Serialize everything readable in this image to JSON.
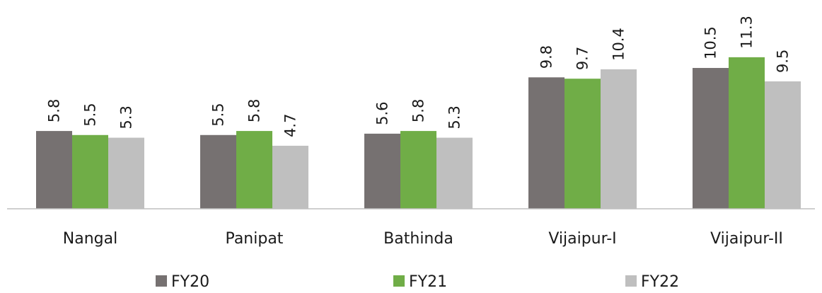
{
  "chart_data": {
    "type": "bar",
    "title": "",
    "xlabel": "",
    "ylabel": "",
    "categories": [
      "Nangal",
      "Panipat",
      "Bathinda",
      "Vijaipur-I",
      "Vijaipur-II"
    ],
    "series": [
      {
        "name": "FY20",
        "color": "#767171",
        "values": [
          5.8,
          5.5,
          5.6,
          9.8,
          10.5
        ],
        "labels": [
          "5.8",
          "5.5",
          "5.6",
          "9.8",
          "10.5"
        ]
      },
      {
        "name": "FY21",
        "color": "#70ad47",
        "values": [
          5.5,
          5.8,
          5.8,
          9.7,
          11.3
        ],
        "labels": [
          "5.5",
          "5.8",
          "5.8",
          "9.7",
          "11.3"
        ]
      },
      {
        "name": "FY22",
        "color": "#bfbfbf",
        "values": [
          5.3,
          4.7,
          5.3,
          10.4,
          9.5
        ],
        "labels": [
          "5.3",
          "4.7",
          "5.3",
          "10.4",
          "9.5"
        ]
      }
    ],
    "ylim": [
      0,
      12.5
    ],
    "grid": false,
    "legend_position": "bottom",
    "axis_color": "#bfbfbf"
  }
}
